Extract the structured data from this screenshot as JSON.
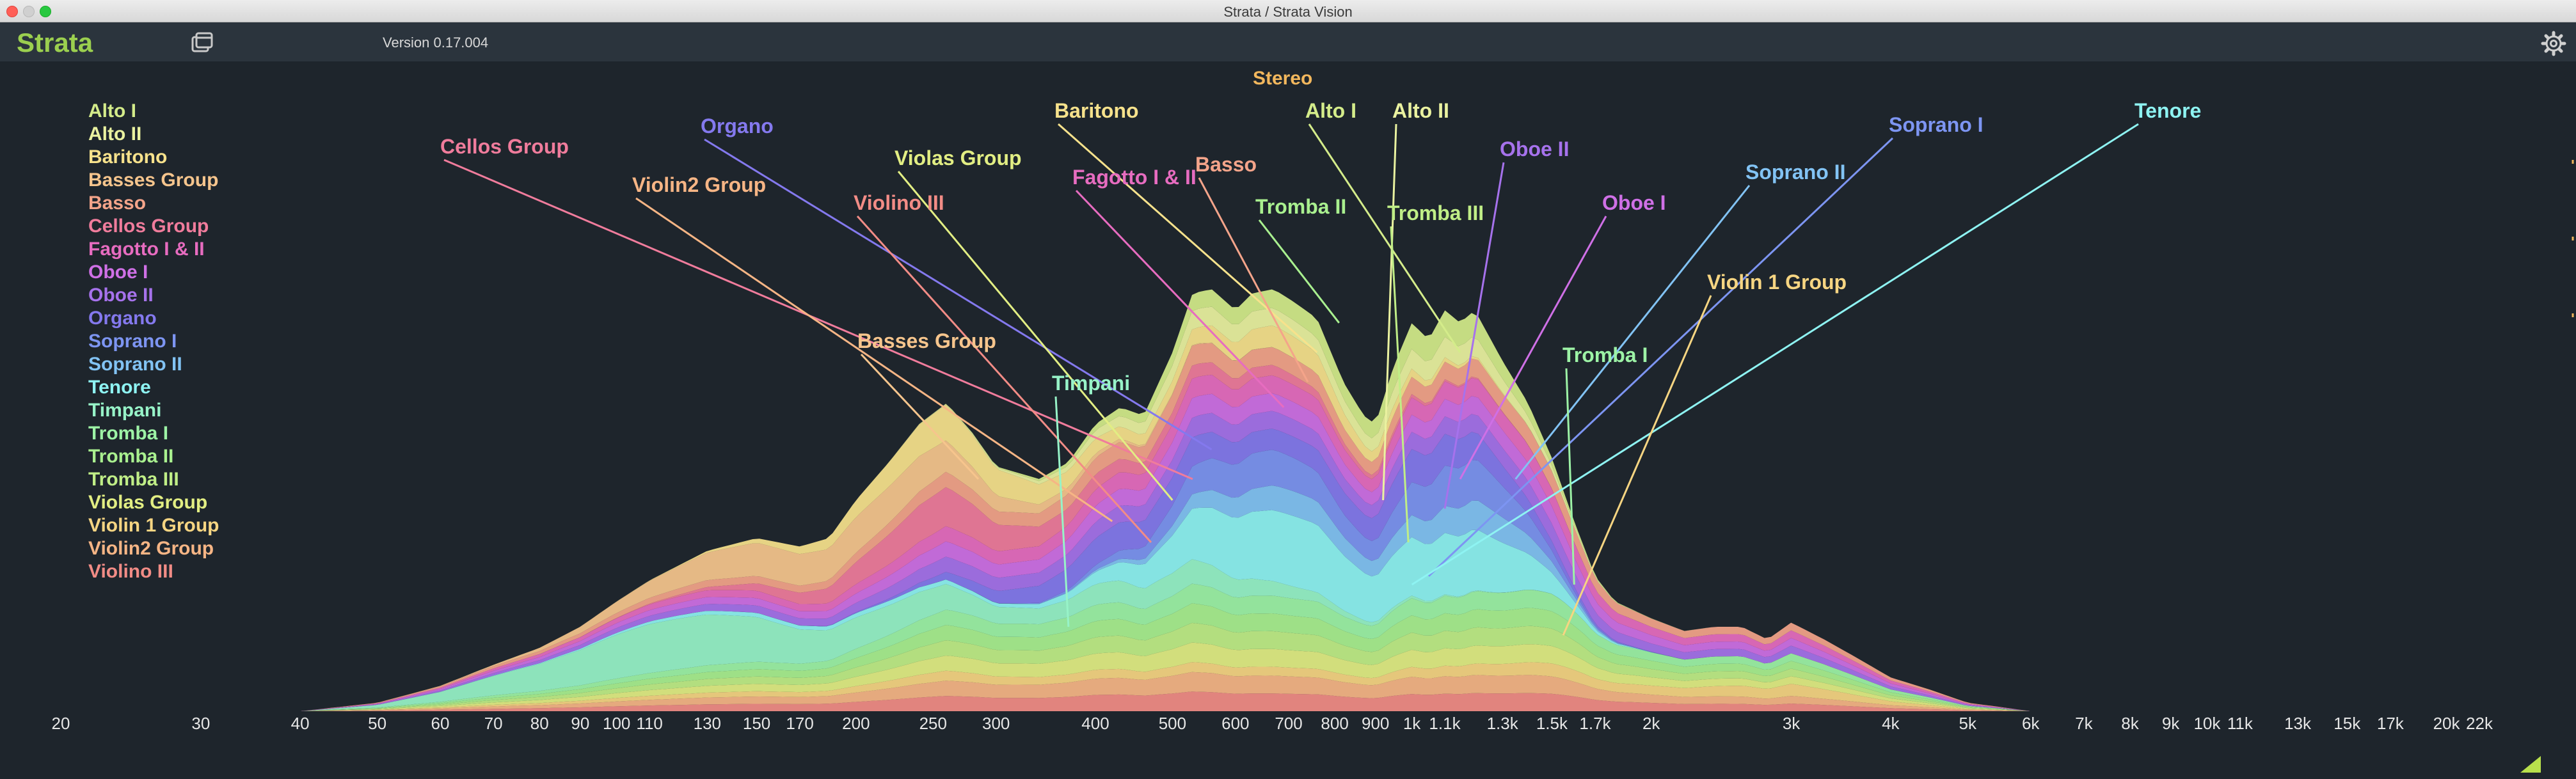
{
  "window": {
    "title": "Strata / Strata Vision"
  },
  "toolbar": {
    "app_name": "Strata",
    "version": "Version 0.17.004",
    "windows_icon": "windows-icon",
    "settings_icon": "gear-icon"
  },
  "view": {
    "mode_label": "Stereo"
  },
  "colors": {
    "background": "#1e252c",
    "toolbar": "#2b343d",
    "app_name": "#9bcf4f",
    "mode_label": "#f2b75d"
  },
  "legend": [
    {
      "name": "Alto I",
      "color": "#d4ec8a"
    },
    {
      "name": "Alto II",
      "color": "#eaf2a0"
    },
    {
      "name": "Baritono",
      "color": "#f7e28c"
    },
    {
      "name": "Basses Group",
      "color": "#f6c58d"
    },
    {
      "name": "Basso",
      "color": "#f4a48a"
    },
    {
      "name": "Cellos Group",
      "color": "#f07c9c"
    },
    {
      "name": "Fagotto I & II",
      "color": "#e76cc0"
    },
    {
      "name": "Oboe I",
      "color": "#cf70e6"
    },
    {
      "name": "Oboe II",
      "color": "#a672ec"
    },
    {
      "name": "Organo",
      "color": "#8479ee"
    },
    {
      "name": "Soprano I",
      "color": "#7d95f2"
    },
    {
      "name": "Soprano II",
      "color": "#82c3f4"
    },
    {
      "name": "Tenore",
      "color": "#8ef3f2"
    },
    {
      "name": "Timpani",
      "color": "#97f3c8"
    },
    {
      "name": "Tromba I",
      "color": "#9df3a6"
    },
    {
      "name": "Tromba II",
      "color": "#a9f08f"
    },
    {
      "name": "Tromba III",
      "color": "#c0ee87"
    },
    {
      "name": "Violas Group",
      "color": "#e2ee83"
    },
    {
      "name": "Violin 1 Group",
      "color": "#f6d582"
    },
    {
      "name": "Violin2 Group",
      "color": "#f6b585"
    },
    {
      "name": "Violino III",
      "color": "#f28c86"
    }
  ],
  "chart_data": {
    "type": "area",
    "title": "",
    "xlabel": "",
    "ylabel": "",
    "x_scale": "log",
    "x_unit": "Hz",
    "xlim": [
      20,
      22000
    ],
    "y_scale": "relative",
    "x_tick_labels": [
      "20",
      "30",
      "40",
      "50",
      "60",
      "70",
      "80",
      "90",
      "100",
      "110",
      "130",
      "150",
      "170",
      "200",
      "250",
      "300",
      "400",
      "500",
      "600",
      "700",
      "800",
      "900",
      "1k",
      "1.1k",
      "1.3k",
      "1.5k",
      "1.7k",
      "2k",
      "3k",
      "4k",
      "5k",
      "6k",
      "7k",
      "8k",
      "9k",
      "10k",
      "11k",
      "13k",
      "15k",
      "17k",
      "20k",
      "22k"
    ],
    "envelope_note": "stacked spectral energy of all instruments",
    "envelope": [
      [
        40,
        0.0
      ],
      [
        50,
        0.02
      ],
      [
        60,
        0.06
      ],
      [
        70,
        0.11
      ],
      [
        80,
        0.15
      ],
      [
        90,
        0.2
      ],
      [
        100,
        0.26
      ],
      [
        110,
        0.31
      ],
      [
        130,
        0.38
      ],
      [
        150,
        0.41
      ],
      [
        170,
        0.39
      ],
      [
        185,
        0.41
      ],
      [
        200,
        0.5
      ],
      [
        220,
        0.59
      ],
      [
        240,
        0.68
      ],
      [
        260,
        0.73
      ],
      [
        280,
        0.66
      ],
      [
        300,
        0.58
      ],
      [
        340,
        0.55
      ],
      [
        370,
        0.59
      ],
      [
        400,
        0.68
      ],
      [
        430,
        0.72
      ],
      [
        460,
        0.7
      ],
      [
        500,
        0.85
      ],
      [
        530,
        0.99
      ],
      [
        560,
        1.0
      ],
      [
        600,
        0.95
      ],
      [
        630,
        0.99
      ],
      [
        670,
        1.0
      ],
      [
        710,
        0.97
      ],
      [
        760,
        0.93
      ],
      [
        820,
        0.78
      ],
      [
        870,
        0.7
      ],
      [
        900,
        0.68
      ],
      [
        950,
        0.82
      ],
      [
        1000,
        0.92
      ],
      [
        1050,
        0.88
      ],
      [
        1100,
        0.95
      ],
      [
        1150,
        0.92
      ],
      [
        1200,
        0.95
      ],
      [
        1300,
        0.83
      ],
      [
        1400,
        0.73
      ],
      [
        1500,
        0.6
      ],
      [
        1600,
        0.45
      ],
      [
        1700,
        0.32
      ],
      [
        1800,
        0.26
      ],
      [
        2000,
        0.22
      ],
      [
        2200,
        0.19
      ],
      [
        2400,
        0.2
      ],
      [
        2600,
        0.2
      ],
      [
        2800,
        0.17
      ],
      [
        3000,
        0.21
      ],
      [
        3300,
        0.17
      ],
      [
        3600,
        0.13
      ],
      [
        4000,
        0.08
      ],
      [
        4500,
        0.05
      ],
      [
        5000,
        0.02
      ],
      [
        5500,
        0.01
      ],
      [
        6000,
        0.0
      ]
    ],
    "labels": [
      {
        "name": "Cellos Group",
        "anchor_hz": 530,
        "anchor_level": 0.55
      },
      {
        "name": "Organo",
        "anchor_hz": 560,
        "anchor_level": 0.62
      },
      {
        "name": "Violin2 Group",
        "anchor_hz": 420,
        "anchor_level": 0.45
      },
      {
        "name": "Violas Group",
        "anchor_hz": 500,
        "anchor_level": 0.5
      },
      {
        "name": "Violino III",
        "anchor_hz": 470,
        "anchor_level": 0.4
      },
      {
        "name": "Baritono",
        "anchor_hz": 760,
        "anchor_level": 0.85
      },
      {
        "name": "Fagotto I & II",
        "anchor_hz": 690,
        "anchor_level": 0.72
      },
      {
        "name": "Basso",
        "anchor_hz": 740,
        "anchor_level": 0.78
      },
      {
        "name": "Tromba II",
        "anchor_hz": 810,
        "anchor_level": 0.92
      },
      {
        "name": "Alto I",
        "anchor_hz": 1150,
        "anchor_level": 0.85
      },
      {
        "name": "Alto II",
        "anchor_hz": 920,
        "anchor_level": 0.5
      },
      {
        "name": "Tromba III",
        "anchor_hz": 990,
        "anchor_level": 0.4
      },
      {
        "name": "Oboe II",
        "anchor_hz": 1100,
        "anchor_level": 0.48
      },
      {
        "name": "Oboe I",
        "anchor_hz": 1150,
        "anchor_level": 0.55
      },
      {
        "name": "Soprano II",
        "anchor_hz": 1350,
        "anchor_level": 0.55
      },
      {
        "name": "Soprano I",
        "anchor_hz": 1050,
        "anchor_level": 0.32
      },
      {
        "name": "Tenore",
        "anchor_hz": 1000,
        "anchor_level": 0.3
      },
      {
        "name": "Violin 1 Group",
        "anchor_hz": 1550,
        "anchor_level": 0.18
      },
      {
        "name": "Tromba I",
        "anchor_hz": 1600,
        "anchor_level": 0.3
      },
      {
        "name": "Basses Group",
        "anchor_hz": 285,
        "anchor_level": 0.55
      },
      {
        "name": "Timpani",
        "anchor_hz": 370,
        "anchor_level": 0.2
      }
    ]
  }
}
